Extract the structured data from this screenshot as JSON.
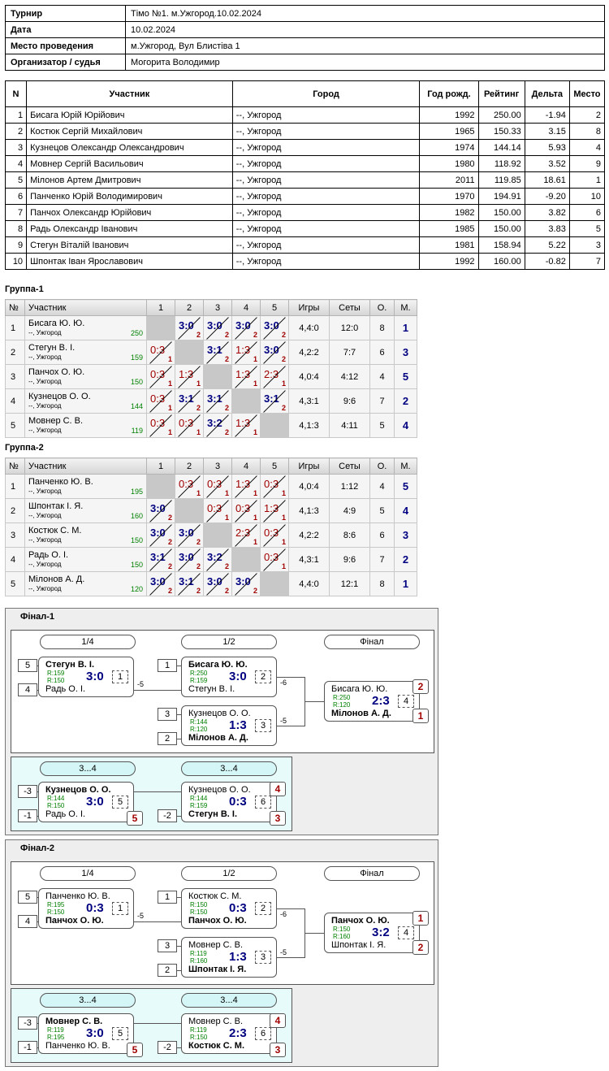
{
  "info": [
    {
      "k": "Турнир",
      "v": "Тімо №1. м.Ужгород.10.02.2024"
    },
    {
      "k": "Дата",
      "v": "10.02.2024"
    },
    {
      "k": "Место проведения",
      "v": "м.Ужгород, Вул Блистіва 1"
    },
    {
      "k": "Организатор / судья",
      "v": "Могорита Володимир"
    }
  ],
  "players": {
    "headers": [
      "N",
      "Участник",
      "Город",
      "Год рожд.",
      "Рейтинг",
      "Дельта",
      "Место"
    ],
    "rows": [
      [
        "1",
        "Бисага Юрій Юрійович",
        "--, Ужгород",
        "1992",
        "250.00",
        "-1.94",
        "2"
      ],
      [
        "2",
        "Костюк Сергій Михайлович",
        "--, Ужгород",
        "1965",
        "150.33",
        "3.15",
        "8"
      ],
      [
        "3",
        "Кузнецов Олександр Олександрович",
        "--, Ужгород",
        "1974",
        "144.14",
        "5.93",
        "4"
      ],
      [
        "4",
        "Мовнер Сергій Васильович",
        "--, Ужгород",
        "1980",
        "118.92",
        "3.52",
        "9"
      ],
      [
        "5",
        "Мілонов Артем Дмитрович",
        "--, Ужгород",
        "2011",
        "119.85",
        "18.61",
        "1"
      ],
      [
        "6",
        "Панченко Юрій Володимирович",
        "--, Ужгород",
        "1970",
        "194.91",
        "-9.20",
        "10"
      ],
      [
        "7",
        "Панчох Олександр Юрійович",
        "--, Ужгород",
        "1982",
        "150.00",
        "3.82",
        "6"
      ],
      [
        "8",
        "Радь Олександр Іванович",
        "--, Ужгород",
        "1985",
        "150.00",
        "3.83",
        "5"
      ],
      [
        "9",
        "Стегун Віталій Іванович",
        "--, Ужгород",
        "1981",
        "158.94",
        "5.22",
        "3"
      ],
      [
        "10",
        "Шпонтак Іван Ярославович",
        "--, Ужгород",
        "1992",
        "160.00",
        "-0.82",
        "7"
      ]
    ]
  },
  "group_headers": [
    "№",
    "Участник",
    "1",
    "2",
    "3",
    "4",
    "5",
    "Игры",
    "Сеты",
    "О.",
    "М."
  ],
  "groups": [
    {
      "title": "Группа-1",
      "rows": [
        {
          "n": "1",
          "name": "Бисага Ю. Ю.",
          "city": "--, Ужгород",
          "rating": "250",
          "res": [
            "",
            "3:0|2",
            "3:0|2",
            "3:0|2",
            "3:0|2"
          ],
          "games": "4,4:0",
          "sets": "12:0",
          "pts": "8",
          "place": "1"
        },
        {
          "n": "2",
          "name": "Стегун В. І.",
          "city": "--, Ужгород",
          "rating": "159",
          "res": [
            "0:3|1",
            "",
            "3:1|2",
            "1:3|1",
            "3:0|2"
          ],
          "games": "4,2:2",
          "sets": "7:7",
          "pts": "6",
          "place": "3"
        },
        {
          "n": "3",
          "name": "Панчох О. Ю.",
          "city": "--, Ужгород",
          "rating": "150",
          "res": [
            "0:3|1",
            "1:3|1",
            "",
            "1:3|1",
            "2:3|1"
          ],
          "games": "4,0:4",
          "sets": "4:12",
          "pts": "4",
          "place": "5"
        },
        {
          "n": "4",
          "name": "Кузнецов О. О.",
          "city": "--, Ужгород",
          "rating": "144",
          "res": [
            "0:3|1",
            "3:1|2",
            "3:1|2",
            "",
            "3:1|2"
          ],
          "games": "4,3:1",
          "sets": "9:6",
          "pts": "7",
          "place": "2"
        },
        {
          "n": "5",
          "name": "Мовнер С. В.",
          "city": "--, Ужгород",
          "rating": "119",
          "res": [
            "0:3|1",
            "0:3|1",
            "3:2|2",
            "1:3|1",
            ""
          ],
          "games": "4,1:3",
          "sets": "4:11",
          "pts": "5",
          "place": "4"
        }
      ]
    },
    {
      "title": "Группа-2",
      "rows": [
        {
          "n": "1",
          "name": "Панченко Ю. В.",
          "city": "--, Ужгород",
          "rating": "195",
          "res": [
            "",
            "0:3|1",
            "0:3|1",
            "1:3|1",
            "0:3|1"
          ],
          "games": "4,0:4",
          "sets": "1:12",
          "pts": "4",
          "place": "5"
        },
        {
          "n": "2",
          "name": "Шпонтак І. Я.",
          "city": "--, Ужгород",
          "rating": "160",
          "res": [
            "3:0|2",
            "",
            "0:3|1",
            "0:3|1",
            "1:3|1"
          ],
          "games": "4,1:3",
          "sets": "4:9",
          "pts": "5",
          "place": "4"
        },
        {
          "n": "3",
          "name": "Костюк С. М.",
          "city": "--, Ужгород",
          "rating": "150",
          "res": [
            "3:0|2",
            "3:0|2",
            "",
            "2:3|1",
            "0:3|1"
          ],
          "games": "4,2:2",
          "sets": "8:6",
          "pts": "6",
          "place": "3"
        },
        {
          "n": "4",
          "name": "Радь О. І.",
          "city": "--, Ужгород",
          "rating": "150",
          "res": [
            "3:1|2",
            "3:0|2",
            "3:2|2",
            "",
            "0:3|1"
          ],
          "games": "4,3:1",
          "sets": "9:6",
          "pts": "7",
          "place": "2"
        },
        {
          "n": "5",
          "name": "Мілонов А. Д.",
          "city": "--, Ужгород",
          "rating": "120",
          "res": [
            "3:0|2",
            "3:1|2",
            "3:0|2",
            "3:0|2",
            ""
          ],
          "games": "4,4:0",
          "sets": "12:1",
          "pts": "8",
          "place": "1"
        }
      ]
    }
  ],
  "finals": [
    {
      "title": "Фінал-1",
      "rounds": [
        "1/4",
        "1/2",
        "Фінал"
      ],
      "cons_rounds": [
        "3...4",
        "3...4"
      ],
      "m1": {
        "s1": "5",
        "s2": "4",
        "p1": "Стегун В. І.",
        "p2": "Радь О. І.",
        "r1": "R:159",
        "r2": "R:150",
        "score": "3:0",
        "g": "1",
        "lost": "-5",
        "w": 1
      },
      "m2": {
        "s1": "1",
        "p1": "Бисага Ю. Ю.",
        "p2": "Стегун В. І.",
        "r1": "R:250",
        "r2": "R:159",
        "score": "3:0",
        "g": "2",
        "lost": "-6",
        "w": 1
      },
      "m3": {
        "s1": "3",
        "s2": "2",
        "p1": "Кузнецов О. О.",
        "p2": "Мілонов А. Д.",
        "r1": "R:144",
        "r2": "R:120",
        "score": "1:3",
        "g": "3",
        "lost": "-5",
        "w": 2
      },
      "m4": {
        "p1": "Бисага Ю. Ю.",
        "p2": "Мілонов А. Д.",
        "r1": "R:250",
        "r2": "R:120",
        "score": "2:3",
        "g": "4",
        "pl1": "2",
        "pl2": "1",
        "w": 2
      },
      "c1": {
        "s1": "-3",
        "s2": "-1",
        "p1": "Кузнецов О. О.",
        "p2": "Радь О. І.",
        "r1": "R:144",
        "r2": "R:150",
        "score": "3:0",
        "g": "5",
        "pl2": "5",
        "w": 1
      },
      "c2": {
        "s2": "-2",
        "p1": "Кузнецов О. О.",
        "p2": "Стегун В. І.",
        "r1": "R:144",
        "r2": "R:159",
        "score": "0:3",
        "g": "6",
        "pl1": "4",
        "pl2": "3",
        "w": 2
      }
    },
    {
      "title": "Фінал-2",
      "rounds": [
        "1/4",
        "1/2",
        "Фінал"
      ],
      "cons_rounds": [
        "3...4",
        "3...4"
      ],
      "m1": {
        "s1": "5",
        "s2": "4",
        "p1": "Панченко Ю. В.",
        "p2": "Панчох О. Ю.",
        "r1": "R:195",
        "r2": "R:150",
        "score": "0:3",
        "g": "1",
        "lost": "-5",
        "w": 2
      },
      "m2": {
        "s1": "1",
        "p1": "Костюк С. М.",
        "p2": "Панчох О. Ю.",
        "r1": "R:150",
        "r2": "R:150",
        "score": "0:3",
        "g": "2",
        "lost": "-6",
        "w": 2
      },
      "m3": {
        "s1": "3",
        "s2": "2",
        "p1": "Мовнер С. В.",
        "p2": "Шпонтак І. Я.",
        "r1": "R:119",
        "r2": "R:160",
        "score": "1:3",
        "g": "3",
        "lost": "-5",
        "w": 2
      },
      "m4": {
        "p1": "Панчох О. Ю.",
        "p2": "Шпонтак І. Я.",
        "r1": "R:150",
        "r2": "R:160",
        "score": "3:2",
        "g": "4",
        "pl1": "1",
        "pl2": "2",
        "w": 1
      },
      "c1": {
        "s1": "-3",
        "s2": "-1",
        "p1": "Мовнер С. В.",
        "p2": "Панченко Ю. В.",
        "r1": "R:119",
        "r2": "R:195",
        "score": "3:0",
        "g": "5",
        "pl2": "5",
        "w": 1
      },
      "c2": {
        "s2": "-2",
        "p1": "Мовнер С. В.",
        "p2": "Костюк С. М.",
        "r1": "R:119",
        "r2": "R:150",
        "score": "2:3",
        "g": "6",
        "pl1": "4",
        "pl2": "3",
        "w": 2
      }
    }
  ]
}
